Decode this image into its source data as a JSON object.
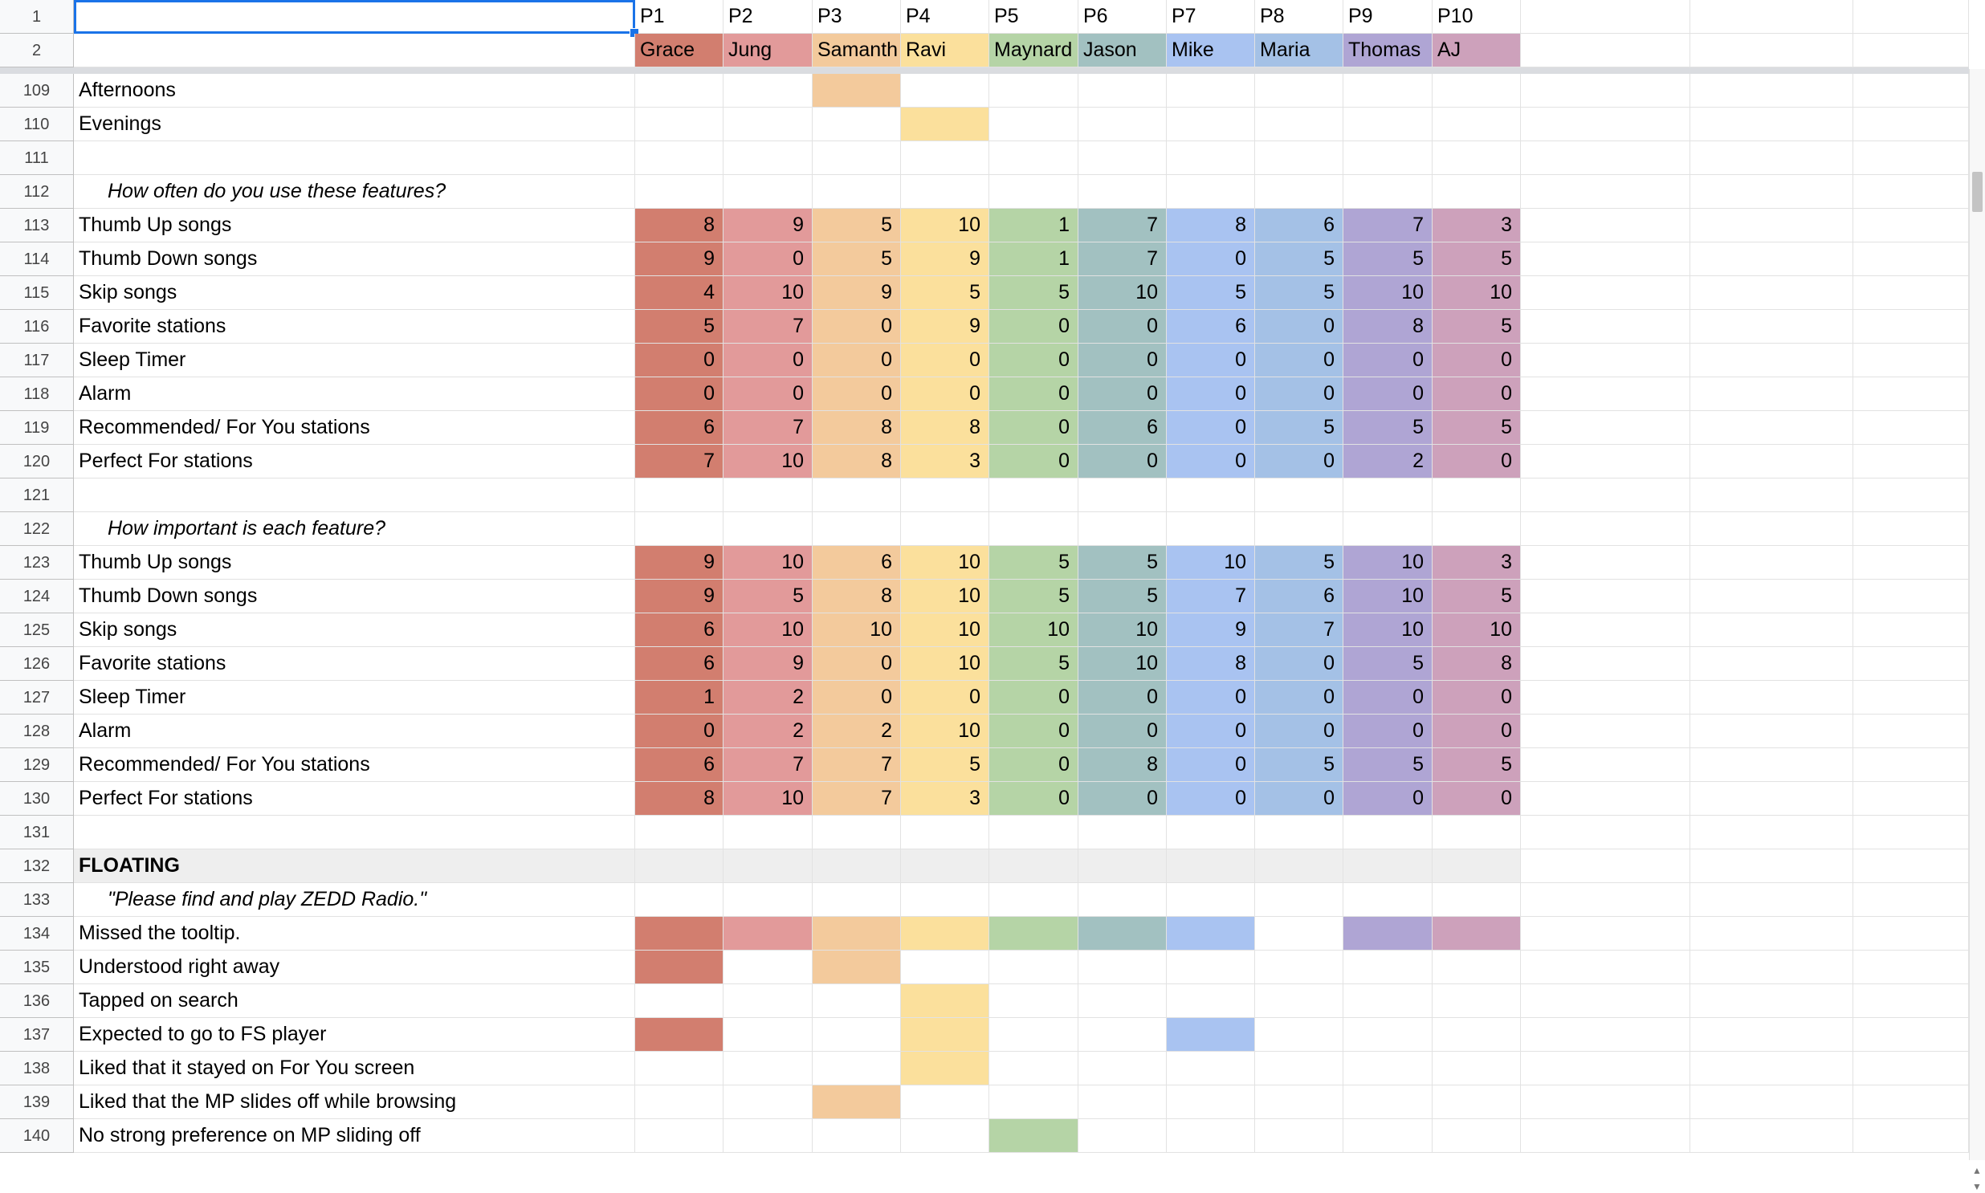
{
  "participant_colors": [
    "#d27e6f",
    "#e29a9a",
    "#f3ca9c",
    "#fbe09c",
    "#b5d4a6",
    "#a2c1c1",
    "#a9c3f1",
    "#a4c1e6",
    "#afa5d4",
    "#cda1bb"
  ],
  "section_fill": "#eeeeee",
  "header": {
    "row1": {
      "num": "1",
      "codes": [
        "P1",
        "P2",
        "P3",
        "P4",
        "P5",
        "P6",
        "P7",
        "P8",
        "P9",
        "P10"
      ]
    },
    "row2": {
      "num": "2",
      "names": [
        "Grace",
        "Jung",
        "Samanth",
        "Ravi",
        "Maynard",
        "Jason",
        "Mike",
        "Maria",
        "Thomas",
        "AJ"
      ]
    }
  },
  "rows": [
    {
      "num": "109",
      "label": "Afternoons",
      "fills": [
        2
      ]
    },
    {
      "num": "110",
      "label": "Evenings",
      "fills": [
        3
      ]
    },
    {
      "num": "111",
      "label": ""
    },
    {
      "num": "112",
      "label": "How often do you use these features?",
      "style": "question"
    },
    {
      "num": "113",
      "label": "Thumb Up songs",
      "values": [
        "8",
        "9",
        "5",
        "10",
        "1",
        "7",
        "8",
        "6",
        "7",
        "3"
      ]
    },
    {
      "num": "114",
      "label": "Thumb Down songs",
      "values": [
        "9",
        "0",
        "5",
        "9",
        "1",
        "7",
        "0",
        "5",
        "5",
        "5"
      ]
    },
    {
      "num": "115",
      "label": "Skip songs",
      "values": [
        "4",
        "10",
        "9",
        "5",
        "5",
        "10",
        "5",
        "5",
        "10",
        "10"
      ]
    },
    {
      "num": "116",
      "label": "Favorite stations",
      "values": [
        "5",
        "7",
        "0",
        "9",
        "0",
        "0",
        "6",
        "0",
        "8",
        "5"
      ]
    },
    {
      "num": "117",
      "label": "Sleep Timer",
      "values": [
        "0",
        "0",
        "0",
        "0",
        "0",
        "0",
        "0",
        "0",
        "0",
        "0"
      ]
    },
    {
      "num": "118",
      "label": "Alarm",
      "values": [
        "0",
        "0",
        "0",
        "0",
        "0",
        "0",
        "0",
        "0",
        "0",
        "0"
      ]
    },
    {
      "num": "119",
      "label": "Recommended/ For You stations",
      "values": [
        "6",
        "7",
        "8",
        "8",
        "0",
        "6",
        "0",
        "5",
        "5",
        "5"
      ]
    },
    {
      "num": "120",
      "label": "Perfect For stations",
      "values": [
        "7",
        "10",
        "8",
        "3",
        "0",
        "0",
        "0",
        "0",
        "2",
        "0"
      ]
    },
    {
      "num": "121",
      "label": ""
    },
    {
      "num": "122",
      "label": "How important is each feature?",
      "style": "question"
    },
    {
      "num": "123",
      "label": "Thumb Up songs",
      "values": [
        "9",
        "10",
        "6",
        "10",
        "5",
        "5",
        "10",
        "5",
        "10",
        "3"
      ]
    },
    {
      "num": "124",
      "label": "Thumb Down songs",
      "values": [
        "9",
        "5",
        "8",
        "10",
        "5",
        "5",
        "7",
        "6",
        "10",
        "5"
      ]
    },
    {
      "num": "125",
      "label": "Skip songs",
      "values": [
        "6",
        "10",
        "10",
        "10",
        "10",
        "10",
        "9",
        "7",
        "10",
        "10"
      ]
    },
    {
      "num": "126",
      "label": "Favorite stations",
      "values": [
        "6",
        "9",
        "0",
        "10",
        "5",
        "10",
        "8",
        "0",
        "5",
        "8"
      ]
    },
    {
      "num": "127",
      "label": "Sleep Timer",
      "values": [
        "1",
        "2",
        "0",
        "0",
        "0",
        "0",
        "0",
        "0",
        "0",
        "0"
      ]
    },
    {
      "num": "128",
      "label": "Alarm",
      "values": [
        "0",
        "2",
        "2",
        "10",
        "0",
        "0",
        "0",
        "0",
        "0",
        "0"
      ]
    },
    {
      "num": "129",
      "label": "Recommended/ For You stations",
      "values": [
        "6",
        "7",
        "7",
        "5",
        "0",
        "8",
        "0",
        "5",
        "5",
        "5"
      ]
    },
    {
      "num": "130",
      "label": "Perfect For stations",
      "values": [
        "8",
        "10",
        "7",
        "3",
        "0",
        "0",
        "0",
        "0",
        "0",
        "0"
      ]
    },
    {
      "num": "131",
      "label": ""
    },
    {
      "num": "132",
      "label": "FLOATING",
      "style": "section"
    },
    {
      "num": "133",
      "label": "\"Please find and play ZEDD Radio.\"",
      "style": "question"
    },
    {
      "num": "134",
      "label": "Missed the tooltip.",
      "fills": [
        0,
        1,
        2,
        3,
        4,
        5,
        6,
        8,
        9
      ]
    },
    {
      "num": "135",
      "label": "Understood right away",
      "fills": [
        0,
        2
      ]
    },
    {
      "num": "136",
      "label": "Tapped on search",
      "fills": [
        3
      ]
    },
    {
      "num": "137",
      "label": "Expected to go to FS player",
      "fills": [
        0,
        3,
        6
      ]
    },
    {
      "num": "138",
      "label": "Liked that it stayed on For You screen",
      "fills": [
        3
      ]
    },
    {
      "num": "139",
      "label": "Liked that the MP slides off while browsing",
      "fills": [
        2
      ]
    },
    {
      "num": "140",
      "label": "No strong preference on MP sliding off",
      "fills": [
        4
      ]
    }
  ]
}
